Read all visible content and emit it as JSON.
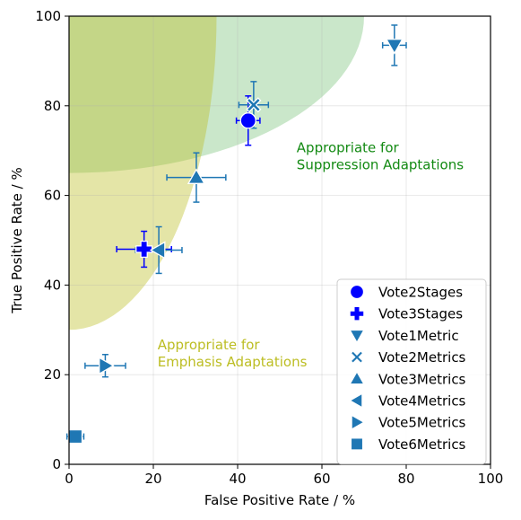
{
  "chart_data": {
    "type": "scatter",
    "xlabel": "False Positive Rate / %",
    "ylabel": "True Positive Rate / %",
    "xlim": [
      0,
      100
    ],
    "ylim": [
      0,
      100
    ],
    "xticks": [
      "0",
      "20",
      "40",
      "60",
      "80",
      "100"
    ],
    "yticks": [
      "0",
      "20",
      "40",
      "60",
      "80",
      "100"
    ],
    "grid": true,
    "legend_position": "lower-right",
    "regions": [
      {
        "label_lines": [
          "Appropriate for",
          "Suppression Adaptations"
        ],
        "color": "#2ca02c",
        "label_color": "#138a13",
        "label_at": [
          54,
          66
        ]
      },
      {
        "label_lines": [
          "Appropriate for",
          "Emphasis Adaptations"
        ],
        "color": "#bcbd22",
        "label_color": "#bcbd22",
        "label_at": [
          21,
          22
        ]
      }
    ],
    "series": [
      {
        "name": "Vote2Stages",
        "marker": "circle",
        "color": "#0000ff",
        "x": 42.5,
        "y": 76.7,
        "xerr": 2.8,
        "yerr": 5.5
      },
      {
        "name": "Vote3Stages",
        "marker": "plus",
        "color": "#0000ff",
        "x": 17.8,
        "y": 48.0,
        "xerr": 6.5,
        "yerr": 4.0
      },
      {
        "name": "Vote1Metric",
        "marker": "triangle-down",
        "color": "#1f77b4",
        "x": 77.2,
        "y": 93.5,
        "xerr": 2.8,
        "yerr": 4.5
      },
      {
        "name": "Vote2Metrics",
        "marker": "x",
        "color": "#1f77b4",
        "x": 43.8,
        "y": 80.2,
        "xerr": 3.5,
        "yerr": 5.2
      },
      {
        "name": "Vote3Metrics",
        "marker": "triangle-up",
        "color": "#1f77b4",
        "x": 30.2,
        "y": 64.0,
        "xerr": 7.0,
        "yerr": 5.5
      },
      {
        "name": "Vote4Metrics",
        "marker": "triangle-left",
        "color": "#1f77b4",
        "x": 21.3,
        "y": 47.8,
        "xerr": 5.5,
        "yerr": 5.2
      },
      {
        "name": "Vote5Metrics",
        "marker": "triangle-right",
        "color": "#1f77b4",
        "x": 8.6,
        "y": 22.0,
        "xerr": 4.8,
        "yerr": 2.5
      },
      {
        "name": "Vote6Metrics",
        "marker": "square",
        "color": "#1f77b4",
        "x": 1.5,
        "y": 6.2,
        "xerr": 2.0,
        "yerr": 0.0
      }
    ]
  }
}
